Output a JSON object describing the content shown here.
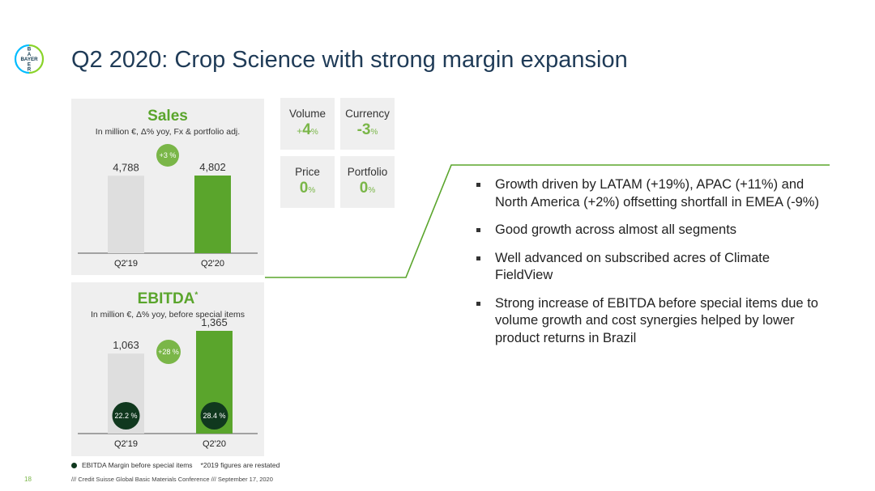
{
  "logo": {
    "text": "BAYER",
    "colors": {
      "ring_left": "#00bcff",
      "ring_right": "#89d329",
      "text": "#10384f"
    }
  },
  "title": "Q2 2020: Crop Science with strong margin expansion",
  "sales": {
    "title": "Sales",
    "subtitle": "In million €, Δ% yoy, Fx & portfolio adj.",
    "growth_badge": "+3 %"
  },
  "ebitda": {
    "title": "EBITDA",
    "title_mark": "*",
    "subtitle": "In million €, Δ% yoy, before special items",
    "growth_badge": "+28 %"
  },
  "kpis": [
    {
      "label": "Volume",
      "sign": "+",
      "value": "4",
      "unit": "%"
    },
    {
      "label": "Currency",
      "sign": "",
      "value": "-3",
      "unit": "%"
    },
    {
      "label": "Price",
      "sign": "",
      "value": "0",
      "unit": "%"
    },
    {
      "label": "Portfolio",
      "sign": "",
      "value": "0",
      "unit": "%"
    }
  ],
  "bullets": [
    "Growth driven by LATAM (+19%), APAC (+11%) and North America (+2%) offsetting shortfall in EMEA (-9%)",
    "Good growth across almost all segments",
    "Well advanced on subscribed acres of Climate FieldView",
    "Strong increase of EBITDA before special items due to volume growth and cost synergies helped by lower product returns in Brazil"
  ],
  "legend": {
    "marker_label": "EBITDA Margin before special items",
    "note": "*2019 figures are restated"
  },
  "page_number": "18",
  "footer": "/// Credit Suisse Global Basic Materials Conference /// September 17, 2020",
  "colors": {
    "accent_green": "#5aa52c",
    "bar_grey": "#dedede",
    "bar_green": "#5aa52c",
    "margin_dark": "#10381e",
    "badge_green": "#7ab648"
  },
  "chart_data": [
    {
      "type": "bar",
      "title": "Sales",
      "categories": [
        "Q2'19",
        "Q2'20"
      ],
      "values": [
        4788,
        4802
      ],
      "value_labels": [
        "4,788",
        "4,802"
      ],
      "ylim": [
        0,
        4802
      ]
    },
    {
      "type": "bar",
      "title": "EBITDA",
      "categories": [
        "Q2'19",
        "Q2'20"
      ],
      "values": [
        1063,
        1365
      ],
      "value_labels": [
        "1,063",
        "1,365"
      ],
      "margins": [
        "22.2 %",
        "28.4 %"
      ],
      "ylim": [
        0,
        1365
      ]
    }
  ]
}
